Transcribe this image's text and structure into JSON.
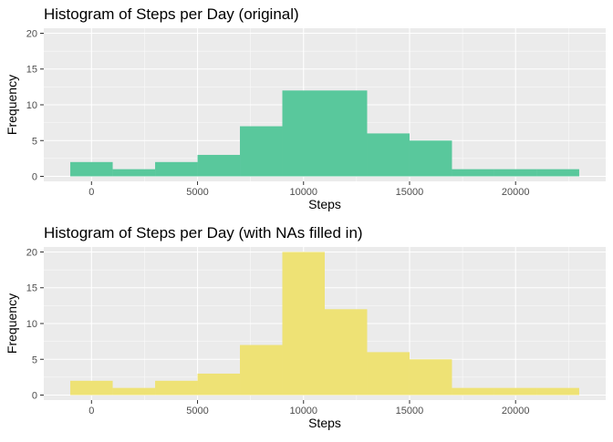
{
  "colors": {
    "original_fill": "#59c89c",
    "filled_fill": "#eee275",
    "panel_background": "#ebebeb",
    "grid": "#ffffff"
  },
  "chart_data": [
    {
      "type": "bar",
      "title": "Histogram of Steps per Day (original)",
      "xlabel": "Steps",
      "ylabel": "Frequency",
      "bin_width": 2000,
      "bins": [
        {
          "x_start": -1000,
          "x_end": 1000,
          "count": 2
        },
        {
          "x_start": 1000,
          "x_end": 3000,
          "count": 1
        },
        {
          "x_start": 3000,
          "x_end": 5000,
          "count": 2
        },
        {
          "x_start": 5000,
          "x_end": 7000,
          "count": 3
        },
        {
          "x_start": 7000,
          "x_end": 9000,
          "count": 7
        },
        {
          "x_start": 9000,
          "x_end": 11000,
          "count": 12
        },
        {
          "x_start": 11000,
          "x_end": 13000,
          "count": 12
        },
        {
          "x_start": 13000,
          "x_end": 15000,
          "count": 6
        },
        {
          "x_start": 15000,
          "x_end": 17000,
          "count": 5
        },
        {
          "x_start": 17000,
          "x_end": 19000,
          "count": 1
        },
        {
          "x_start": 19000,
          "x_end": 21000,
          "count": 1
        },
        {
          "x_start": 21000,
          "x_end": 23000,
          "count": 1
        }
      ],
      "xlim": [
        -2250,
        24250
      ],
      "ylim": [
        -0.7,
        20.7
      ],
      "x_ticks": [
        0,
        5000,
        10000,
        15000,
        20000
      ],
      "x_tick_labels": [
        "0",
        "5000",
        "10000",
        "15000",
        "20000"
      ],
      "y_ticks": [
        0,
        5,
        10,
        15,
        20
      ],
      "y_tick_labels": [
        "0",
        "5",
        "10",
        "15",
        "20"
      ],
      "grid": true,
      "fill_color": "#59c89c"
    },
    {
      "type": "bar",
      "title": "Histogram of Steps per Day (with NAs filled in)",
      "xlabel": "Steps",
      "ylabel": "Frequency",
      "bin_width": 2000,
      "bins": [
        {
          "x_start": -1000,
          "x_end": 1000,
          "count": 2
        },
        {
          "x_start": 1000,
          "x_end": 3000,
          "count": 1
        },
        {
          "x_start": 3000,
          "x_end": 5000,
          "count": 2
        },
        {
          "x_start": 5000,
          "x_end": 7000,
          "count": 3
        },
        {
          "x_start": 7000,
          "x_end": 9000,
          "count": 7
        },
        {
          "x_start": 9000,
          "x_end": 11000,
          "count": 20
        },
        {
          "x_start": 11000,
          "x_end": 13000,
          "count": 12
        },
        {
          "x_start": 13000,
          "x_end": 15000,
          "count": 6
        },
        {
          "x_start": 15000,
          "x_end": 17000,
          "count": 5
        },
        {
          "x_start": 17000,
          "x_end": 19000,
          "count": 1
        },
        {
          "x_start": 19000,
          "x_end": 21000,
          "count": 1
        },
        {
          "x_start": 21000,
          "x_end": 23000,
          "count": 1
        }
      ],
      "xlim": [
        -2250,
        24250
      ],
      "ylim": [
        -0.7,
        20.7
      ],
      "x_ticks": [
        0,
        5000,
        10000,
        15000,
        20000
      ],
      "x_tick_labels": [
        "0",
        "5000",
        "10000",
        "15000",
        "20000"
      ],
      "y_ticks": [
        0,
        5,
        10,
        15,
        20
      ],
      "y_tick_labels": [
        "0",
        "5",
        "10",
        "15",
        "20"
      ],
      "grid": true,
      "fill_color": "#eee275"
    }
  ]
}
